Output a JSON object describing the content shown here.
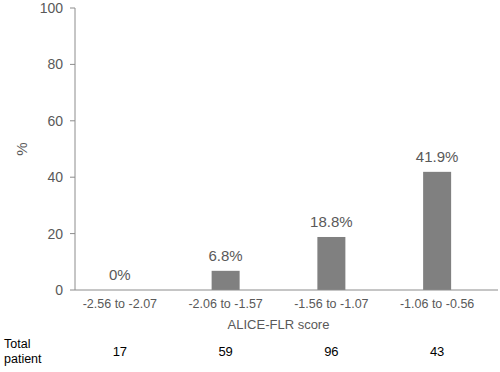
{
  "chart_data": {
    "type": "bar",
    "categories": [
      "-2.56 to -2.07",
      "-2.06 to -1.57",
      "-1.56 to -1.07",
      "-1.06 to -0.56"
    ],
    "values": [
      0,
      6.8,
      18.8,
      41.9
    ],
    "value_labels": [
      "0%",
      "6.8%",
      "18.8%",
      "41.9%"
    ],
    "data_labels": true,
    "color": "#808080",
    "x_label": "ALICE-FLR score",
    "y_label": "%",
    "ylim": [
      0,
      100
    ],
    "yticks": [
      0,
      20,
      40,
      60,
      80,
      100
    ],
    "grid": false,
    "totals_label": "Total patient",
    "totals": [
      17,
      59,
      96,
      43
    ]
  }
}
